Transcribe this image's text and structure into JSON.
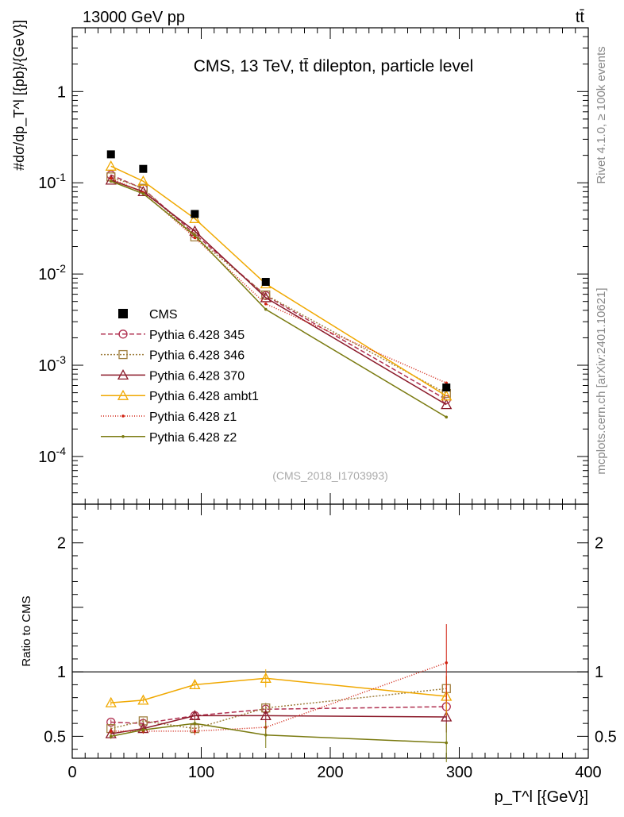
{
  "header": {
    "left": "13000 GeV pp",
    "right": "tt̄"
  },
  "side_texts": {
    "rivet": "Rivet 4.1.0, ≥ 100k events",
    "mcplots": "mcplots.cern.ch [arXiv:2401.10621]"
  },
  "chart_data": {
    "type": "line",
    "title": "CMS, 13 TeV, tt̄ dilepton, particle level",
    "analysis_id": "(CMS_2018_I1703993)",
    "xlabel": "p_T^l [{GeV}]",
    "ylabel": "#dσ/dp_T^l [{pb}/{GeV}]",
    "ratio_ylabel": "Ratio to CMS",
    "xlim": [
      0,
      400
    ],
    "ylim": [
      3e-05,
      5
    ],
    "yscale": "log",
    "ratio_ylim": [
      0.33,
      2.3
    ],
    "x_ticks": [
      0,
      100,
      200,
      300,
      400
    ],
    "x_tick_labels": [
      "0",
      "100",
      "200",
      "300",
      "400"
    ],
    "y_ticks": [
      1,
      0.1,
      0.01,
      0.001,
      0.0001
    ],
    "y_tick_labels": [
      "1",
      "10^-1",
      "10^-2",
      "10^-3",
      "10^-4"
    ],
    "ratio_ticks": [
      0.5,
      1,
      2
    ],
    "ratio_tick_labels": [
      "0.5",
      "1",
      "2"
    ],
    "legend_position": "lower-left",
    "x": [
      30,
      55,
      95,
      150,
      290
    ],
    "data": {
      "name": "CMS",
      "color": "#000000",
      "values": [
        0.205,
        0.142,
        0.0455,
        0.0082,
        0.00057
      ]
    },
    "series": [
      {
        "name": "Pythia 6.428 345",
        "color": "#b03050",
        "dash": "6,3",
        "marker": "circle",
        "values": [
          0.122,
          0.086,
          0.0275,
          0.0058,
          0.00042
        ],
        "ratio": [
          0.61,
          0.6,
          0.66,
          0.71,
          0.73
        ],
        "ratio_err": [
          0.02,
          0.02,
          0.02,
          0.04,
          0.1
        ]
      },
      {
        "name": "Pythia 6.428 346",
        "color": "#a08040",
        "dash": "2,2",
        "marker": "square",
        "values": [
          0.116,
          0.087,
          0.0255,
          0.0059,
          0.00049
        ],
        "ratio": [
          0.56,
          0.62,
          0.56,
          0.72,
          0.87
        ],
        "ratio_err": [
          0.02,
          0.02,
          0.02,
          0.04,
          0.1
        ]
      },
      {
        "name": "Pythia 6.428 370",
        "color": "#8b1a2a",
        "dash": "",
        "marker": "triangle",
        "values": [
          0.107,
          0.08,
          0.0295,
          0.0055,
          0.00037
        ],
        "ratio": [
          0.52,
          0.56,
          0.66,
          0.66,
          0.65
        ],
        "ratio_err": [
          0.02,
          0.02,
          0.03,
          0.05,
          0.12
        ]
      },
      {
        "name": "Pythia 6.428 ambt1",
        "color": "#f0a800",
        "dash": "",
        "marker": "triangle",
        "values": [
          0.152,
          0.104,
          0.0405,
          0.0078,
          0.00046
        ],
        "ratio": [
          0.76,
          0.78,
          0.9,
          0.95,
          0.81
        ],
        "ratio_err": [
          0.02,
          0.02,
          0.03,
          0.07,
          0.15
        ]
      },
      {
        "name": "Pythia 6.428 z1",
        "color": "#d02010",
        "dash": "1,2",
        "marker": "dot",
        "values": [
          0.112,
          0.078,
          0.025,
          0.0047,
          0.00064
        ],
        "ratio": [
          0.54,
          0.54,
          0.54,
          0.57,
          1.07
        ],
        "ratio_err": [
          0.02,
          0.02,
          0.03,
          0.05,
          0.3
        ]
      },
      {
        "name": "Pythia 6.428 z2",
        "color": "#7a7a10",
        "dash": "",
        "marker": "dot",
        "values": [
          0.104,
          0.076,
          0.0265,
          0.0041,
          0.00027
        ],
        "ratio": [
          0.5,
          0.55,
          0.6,
          0.51,
          0.45
        ],
        "ratio_err": [
          0.02,
          0.02,
          0.03,
          0.1,
          0.15
        ]
      }
    ]
  }
}
